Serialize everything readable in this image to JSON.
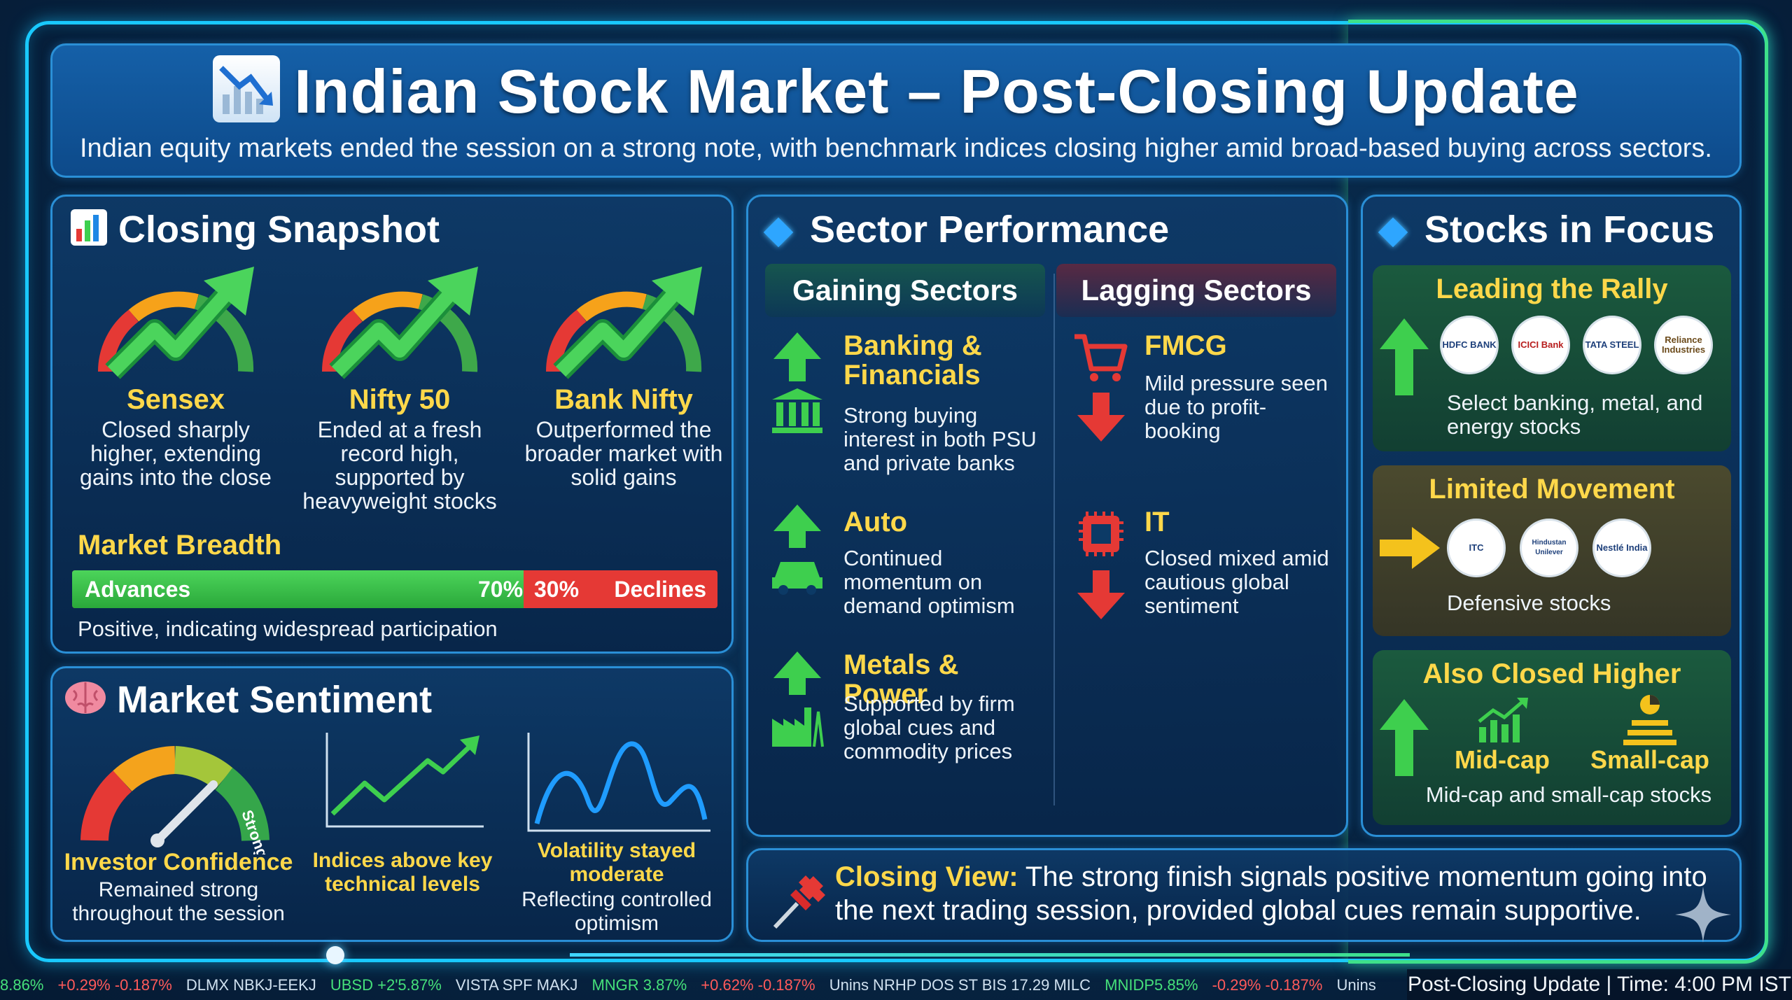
{
  "header": {
    "title": "Indian Stock Market – Post-Closing Update",
    "subtitle": "Indian equity markets ended the session on a strong note, with benchmark indices closing higher amid broad-based buying across sectors."
  },
  "closing_snapshot": {
    "title": "Closing Snapshot",
    "indices": [
      {
        "name": "Sensex",
        "desc": "Closed sharply higher, extending gains into the close"
      },
      {
        "name": "Nifty 50",
        "desc": "Ended at a fresh record high, supported by heavyweight stocks"
      },
      {
        "name": "Bank Nifty",
        "desc": "Outperformed the broader market with solid gains"
      }
    ],
    "breadth": {
      "title": "Market Breadth",
      "advances_label": "Advances",
      "advances_pct": "70%",
      "advances_value": 70,
      "declines_label": "Declines",
      "declines_pct": "30%",
      "note": "Positive, indicating widespread participation"
    }
  },
  "sentiment": {
    "title": "Market Sentiment",
    "gauge_label": "Strong",
    "items": [
      {
        "title": "Investor Confidence",
        "desc": "Remained strong throughout the session"
      },
      {
        "title": "Indices above key technical levels",
        "desc": ""
      },
      {
        "title": "Volatility stayed moderate",
        "desc": "Reflecting controlled optimism"
      }
    ]
  },
  "sectors": {
    "title": "Sector Performance",
    "gaining_title": "Gaining Sectors",
    "lagging_title": "Lagging Sectors",
    "gaining": [
      {
        "name": "Banking & Financials",
        "desc": "Strong buying interest in both PSU and private banks",
        "icon": "bank-icon"
      },
      {
        "name": "Auto",
        "desc": "Continued momentum on demand optimism",
        "icon": "car-icon"
      },
      {
        "name": "Metals & Power",
        "desc": "Supported by firm global cues and commodity prices",
        "icon": "factory-icon"
      }
    ],
    "lagging": [
      {
        "name": "FMCG",
        "desc": "Mild pressure seen due to profit-booking",
        "icon": "cart-icon"
      },
      {
        "name": "IT",
        "desc": "Closed mixed amid cautious global sentiment",
        "icon": "chip-icon"
      }
    ]
  },
  "stocks": {
    "title": "Stocks in Focus",
    "leading": {
      "title": "Leading the Rally",
      "logos": [
        "HDFC BANK",
        "ICICI Bank",
        "TATA STEEL",
        "Reliance Industries"
      ],
      "desc": "Select banking, metal, and energy stocks"
    },
    "limited": {
      "title": "Limited Movement",
      "logos": [
        "ITC",
        "Hindustan Unilever",
        "Nestlé India"
      ],
      "desc": "Defensive stocks"
    },
    "also_higher": {
      "title": "Also Closed Higher",
      "midcap": "Mid-cap",
      "smallcap": "Small-cap",
      "desc": "Mid-cap and small-cap stocks"
    }
  },
  "closing_view": {
    "label": "Closing View:",
    "text": "The strong finish signals positive momentum going into the next trading session, provided global cues remain supportive."
  },
  "ticker": [
    {
      "text": "8.86%",
      "dir": "up"
    },
    {
      "text": "+0.29% -0.187%",
      "dir": "down"
    },
    {
      "text": "DLMX NBKJ-EEKJ",
      "dir": "neu"
    },
    {
      "text": "UBSD +2'5.87%",
      "dir": "up"
    },
    {
      "text": "VISTA SPF MAKJ",
      "dir": "neu"
    },
    {
      "text": "MNGR 3.87%",
      "dir": "up"
    },
    {
      "text": "+0.62% -0.187%",
      "dir": "down"
    },
    {
      "text": "Unins NRHP DOS ST BIS 17.29 MILC",
      "dir": "neu"
    },
    {
      "text": "MNIDP5.85%",
      "dir": "up"
    },
    {
      "text": "-0.29% -0.187%",
      "dir": "down"
    },
    {
      "text": "Unins",
      "dir": "neu"
    }
  ],
  "footer": {
    "text": "Post-Closing Update | Time: 4:00 PM IST"
  },
  "colors": {
    "accent": "#19c9ff",
    "gain": "#3ecf4e",
    "loss": "#e53935",
    "highlight": "#ffd84a"
  }
}
